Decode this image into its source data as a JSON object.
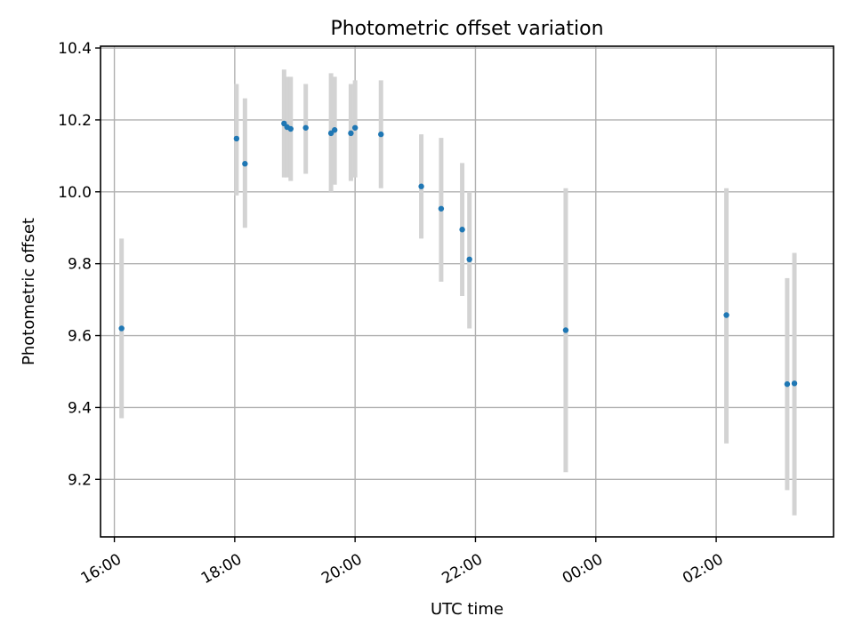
{
  "chart_data": {
    "type": "scatter",
    "title": "Photometric offset variation",
    "xlabel": "UTC time",
    "ylabel": "Photometric offset",
    "x_axis": {
      "unit": "UTC time (decimal hours; values above 24 are after midnight)",
      "range": [
        15.77,
        27.95
      ],
      "ticks": [
        {
          "value": 16,
          "label": "16:00"
        },
        {
          "value": 18,
          "label": "18:00"
        },
        {
          "value": 20,
          "label": "20:00"
        },
        {
          "value": 22,
          "label": "22:00"
        },
        {
          "value": 24,
          "label": "00:00"
        },
        {
          "value": 26,
          "label": "02:00"
        }
      ]
    },
    "y_axis": {
      "range": [
        9.04,
        10.405
      ],
      "ticks": [
        {
          "value": 9.2,
          "label": "9.2"
        },
        {
          "value": 9.4,
          "label": "9.4"
        },
        {
          "value": 9.6,
          "label": "9.6"
        },
        {
          "value": 9.8,
          "label": "9.8"
        },
        {
          "value": 10.0,
          "label": "10.0"
        },
        {
          "value": 10.2,
          "label": "10.2"
        },
        {
          "value": 10.4,
          "label": "10.4"
        }
      ]
    },
    "grid": true,
    "legend": "none",
    "colors": {
      "points": "#1f77b4",
      "error_bars": "#d3d3d3"
    },
    "series": [
      {
        "points": [
          {
            "x": 16.12,
            "y": 9.62,
            "err_low": 9.37,
            "err_high": 9.87
          },
          {
            "x": 18.03,
            "y": 10.148,
            "err_low": 9.99,
            "err_high": 10.3
          },
          {
            "x": 18.17,
            "y": 10.078,
            "err_low": 9.9,
            "err_high": 10.26
          },
          {
            "x": 18.82,
            "y": 10.19,
            "err_low": 10.04,
            "err_high": 10.34
          },
          {
            "x": 18.87,
            "y": 10.18,
            "err_low": 10.04,
            "err_high": 10.32
          },
          {
            "x": 18.93,
            "y": 10.175,
            "err_low": 10.03,
            "err_high": 10.32
          },
          {
            "x": 19.18,
            "y": 10.178,
            "err_low": 10.05,
            "err_high": 10.3
          },
          {
            "x": 19.6,
            "y": 10.163,
            "err_low": 10.0,
            "err_high": 10.33
          },
          {
            "x": 19.66,
            "y": 10.172,
            "err_low": 10.02,
            "err_high": 10.32
          },
          {
            "x": 19.93,
            "y": 10.163,
            "err_low": 10.03,
            "err_high": 10.3
          },
          {
            "x": 20.0,
            "y": 10.178,
            "err_low": 10.04,
            "err_high": 10.31
          },
          {
            "x": 20.43,
            "y": 10.16,
            "err_low": 10.01,
            "err_high": 10.31
          },
          {
            "x": 21.1,
            "y": 10.015,
            "err_low": 9.87,
            "err_high": 10.16
          },
          {
            "x": 21.43,
            "y": 9.953,
            "err_low": 9.75,
            "err_high": 10.15
          },
          {
            "x": 21.78,
            "y": 9.895,
            "err_low": 9.71,
            "err_high": 10.08
          },
          {
            "x": 21.9,
            "y": 9.812,
            "err_low": 9.62,
            "err_high": 10.0
          },
          {
            "x": 23.5,
            "y": 9.615,
            "err_low": 9.22,
            "err_high": 10.01
          },
          {
            "x": 26.17,
            "y": 9.657,
            "err_low": 9.3,
            "err_high": 10.01
          },
          {
            "x": 27.18,
            "y": 9.465,
            "err_low": 9.17,
            "err_high": 9.76
          },
          {
            "x": 27.3,
            "y": 9.467,
            "err_low": 9.1,
            "err_high": 9.83
          }
        ]
      }
    ]
  }
}
